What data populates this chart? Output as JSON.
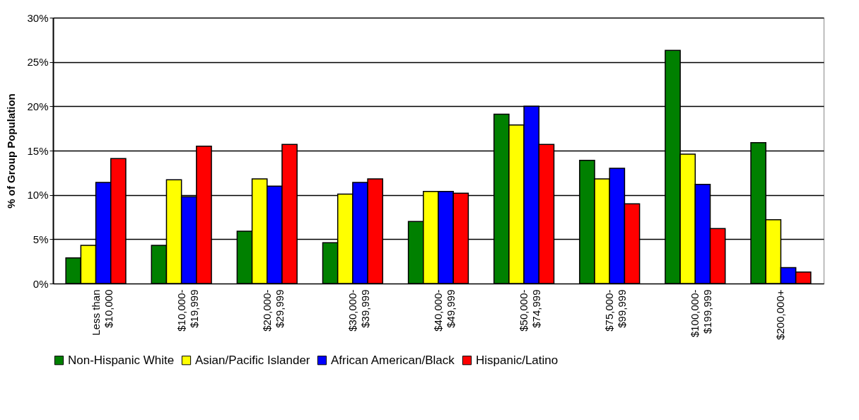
{
  "chart_data": {
    "type": "bar",
    "ylabel": "% of Group Population",
    "categories": [
      "Less than\n$10,000",
      "$10,000-\n$19,999",
      "$20,000-\n$29,999",
      "$30,000-\n$39,999",
      "$40,000-\n$49,999",
      "$50,000-\n$74,999",
      "$75,000-\n$99,999",
      "$100,000-\n$199,999",
      "$200,000+"
    ],
    "series": [
      {
        "name": "Non-Hispanic White",
        "color": "#008000",
        "values": [
          2.9,
          4.3,
          5.9,
          4.6,
          7.0,
          19.1,
          13.9,
          26.3,
          15.9
        ]
      },
      {
        "name": "Asian/Pacific Islander",
        "color": "#ffff00",
        "values": [
          4.3,
          11.7,
          11.8,
          10.1,
          10.4,
          17.9,
          11.8,
          14.6,
          7.2
        ]
      },
      {
        "name": "African American/Black",
        "color": "#0000ff",
        "values": [
          11.4,
          9.8,
          11.0,
          11.4,
          10.4,
          20.0,
          13.0,
          11.2,
          1.8
        ]
      },
      {
        "name": "Hispanic/Latino",
        "color": "#ff0000",
        "values": [
          14.1,
          15.5,
          15.7,
          11.8,
          10.2,
          15.7,
          9.0,
          6.2,
          1.3
        ]
      }
    ],
    "ylim": [
      0,
      30
    ],
    "yticks": [
      {
        "value": 0,
        "label": "0%"
      },
      {
        "value": 5,
        "label": "5%"
      },
      {
        "value": 10,
        "label": "10%"
      },
      {
        "value": 15,
        "label": "15%"
      },
      {
        "value": 20,
        "label": "20%"
      },
      {
        "value": 25,
        "label": "25%"
      },
      {
        "value": 30,
        "label": "30%"
      }
    ],
    "grid": "y",
    "legend": "bottom"
  }
}
